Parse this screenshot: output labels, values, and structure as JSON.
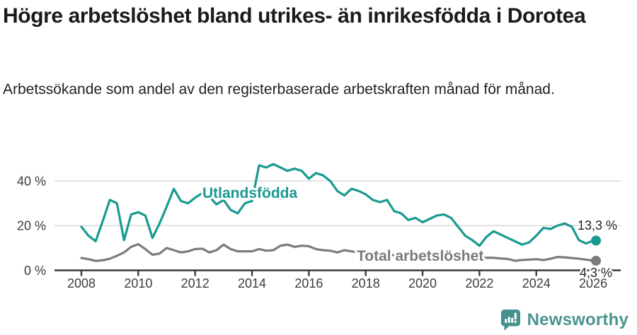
{
  "chart_data": {
    "type": "line",
    "title": "Högre arbetslöshet bland utrikes- än inrikesfödda i Dorotea",
    "subtitle": "Arbetssökande som andel av den registerbaserade arbetskraften månad för månad.",
    "xlabel": "",
    "ylabel": "",
    "xlim": [
      2007.9,
      2027.0
    ],
    "ylim": [
      0,
      50
    ],
    "grid": "horizontal",
    "legend": "inline-labels",
    "x_ticks": [
      2008,
      2010,
      2012,
      2014,
      2016,
      2018,
      2020,
      2022,
      2024,
      2026
    ],
    "y_ticks": [
      {
        "value": 0,
        "label": "0 %"
      },
      {
        "value": 20,
        "label": "20 %"
      },
      {
        "value": 40,
        "label": "40 %"
      }
    ],
    "grid_color": "#d9d9d9",
    "axis_color": "#3a3a3a",
    "series": [
      {
        "id": "total",
        "name": "Total arbetslöshet",
        "color": "#7b7b7b",
        "x_start": 2008.0,
        "x_step": 0.25,
        "values": [
          5.5,
          5.0,
          4.2,
          4.5,
          5.2,
          6.5,
          8.0,
          10.5,
          11.7,
          9.5,
          7.0,
          7.5,
          10.0,
          9.0,
          8.0,
          8.5,
          9.5,
          9.7,
          8.0,
          9.0,
          11.5,
          9.5,
          8.5,
          8.5,
          8.5,
          9.5,
          8.8,
          9.0,
          11.0,
          11.5,
          10.5,
          11.0,
          10.8,
          9.5,
          9.0,
          8.8,
          8.0,
          9.0,
          8.5,
          8.0,
          7.8,
          7.5,
          7.2,
          7.0,
          6.8,
          6.6,
          6.5,
          6.6,
          7.0,
          7.4,
          7.2,
          7.0,
          6.8,
          6.5,
          6.2,
          6.0,
          5.8,
          5.6,
          5.6,
          5.3,
          5.1,
          4.3,
          4.6,
          4.8,
          5.0,
          4.6,
          5.2,
          6.0,
          5.8,
          5.5,
          5.2,
          4.8,
          4.3
        ],
        "end_x": 2026.1,
        "end_value": 4.3,
        "end_label": "4,3 %"
      },
      {
        "id": "utlandsfodda",
        "name": "Utlandsfödda",
        "color": "#199a90",
        "x_start": 2008.0,
        "x_step": 0.25,
        "values": [
          19.5,
          15.5,
          13.0,
          22.0,
          31.5,
          30.0,
          13.5,
          25.0,
          26.0,
          24.5,
          14.5,
          21.0,
          28.5,
          36.5,
          31.0,
          30.0,
          32.5,
          34.5,
          33.0,
          29.5,
          31.5,
          27.0,
          25.5,
          30.0,
          31.0,
          47.0,
          46.0,
          47.5,
          46.0,
          44.5,
          45.5,
          44.5,
          41.0,
          43.5,
          42.5,
          40.0,
          35.5,
          33.5,
          36.5,
          35.5,
          34.0,
          31.5,
          30.5,
          31.5,
          26.5,
          25.5,
          22.5,
          23.5,
          21.5,
          23.0,
          24.5,
          25.0,
          23.5,
          19.5,
          15.5,
          13.5,
          11.0,
          15.0,
          17.5,
          16.0,
          14.5,
          13.0,
          11.5,
          12.5,
          15.5,
          19.0,
          18.5,
          20.0,
          21.0,
          19.5,
          13.5,
          12.0,
          13.3
        ],
        "end_x": 2026.1,
        "end_value": 13.3,
        "end_label": "13,3 %"
      }
    ]
  },
  "footer": {
    "brand": "Newsworthy"
  }
}
